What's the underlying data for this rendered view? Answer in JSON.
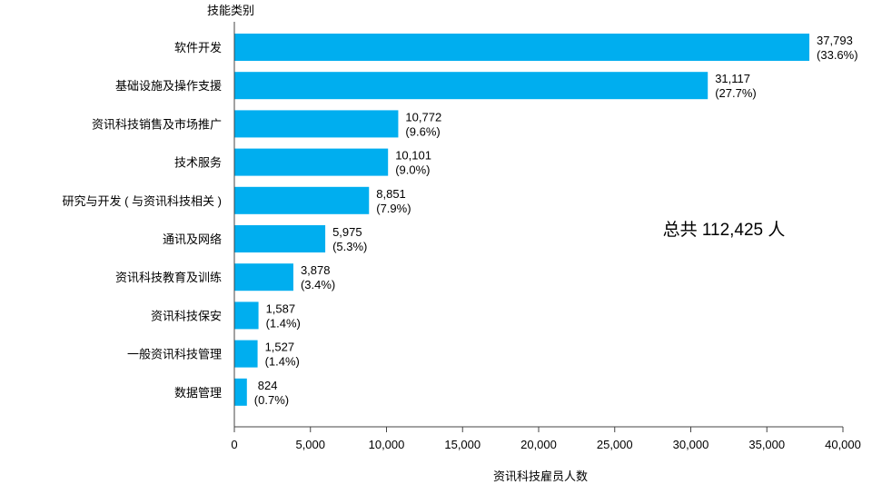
{
  "chart_data": {
    "type": "bar",
    "orientation": "horizontal",
    "categories": [
      "软件开发",
      "基础设施及操作支援",
      "资讯科技销售及市场推广",
      "技术服务",
      "研究与开发 ( 与资讯科技相关 )",
      "通讯及网络",
      "资讯科技教育及训练",
      "资讯科技保安",
      "一般资讯科技管理",
      "数据管理"
    ],
    "values": [
      37793,
      31117,
      10772,
      10101,
      8851,
      5975,
      3878,
      1587,
      1527,
      824
    ],
    "value_labels": [
      "37,793",
      "31,117",
      "10,772",
      "10,101",
      "8,851",
      "5,975",
      "3,878",
      "1,587",
      "1,527",
      "824"
    ],
    "percent_labels": [
      "(33.6%)",
      "(27.7%)",
      "(9.6%)",
      "(9.0%)",
      "(7.9%)",
      "(5.3%)",
      "(3.4%)",
      "(1.4%)",
      "(1.4%)",
      "(0.7%)"
    ],
    "ylabel": "技能类别",
    "xlabel": "资讯科技雇员人数",
    "xlim": [
      0,
      40000
    ],
    "xticks": [
      0,
      5000,
      10000,
      15000,
      20000,
      25000,
      30000,
      35000,
      40000
    ],
    "xtick_labels": [
      "0",
      "5,000",
      "10,000",
      "15,000",
      "20,000",
      "25,000",
      "30,000",
      "35,000",
      "40,000"
    ],
    "annotation": "总共 112,425 人",
    "bar_color": "#00aeef",
    "grid": false,
    "legend": false
  }
}
